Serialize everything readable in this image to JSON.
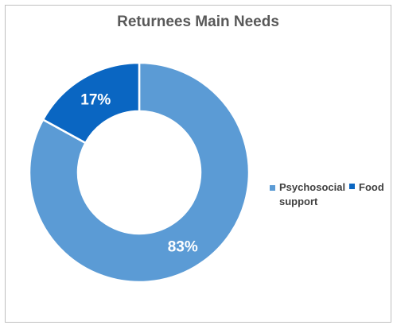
{
  "chart_data": {
    "type": "pie",
    "title": "Returnees Main Needs",
    "donut": true,
    "categories": [
      "Psychosocial support",
      "Food"
    ],
    "values": [
      83,
      17
    ],
    "labels": [
      "83%",
      "17%"
    ],
    "colors": [
      "#5b9bd5",
      "#0a66c2"
    ],
    "legend_position": "right"
  }
}
